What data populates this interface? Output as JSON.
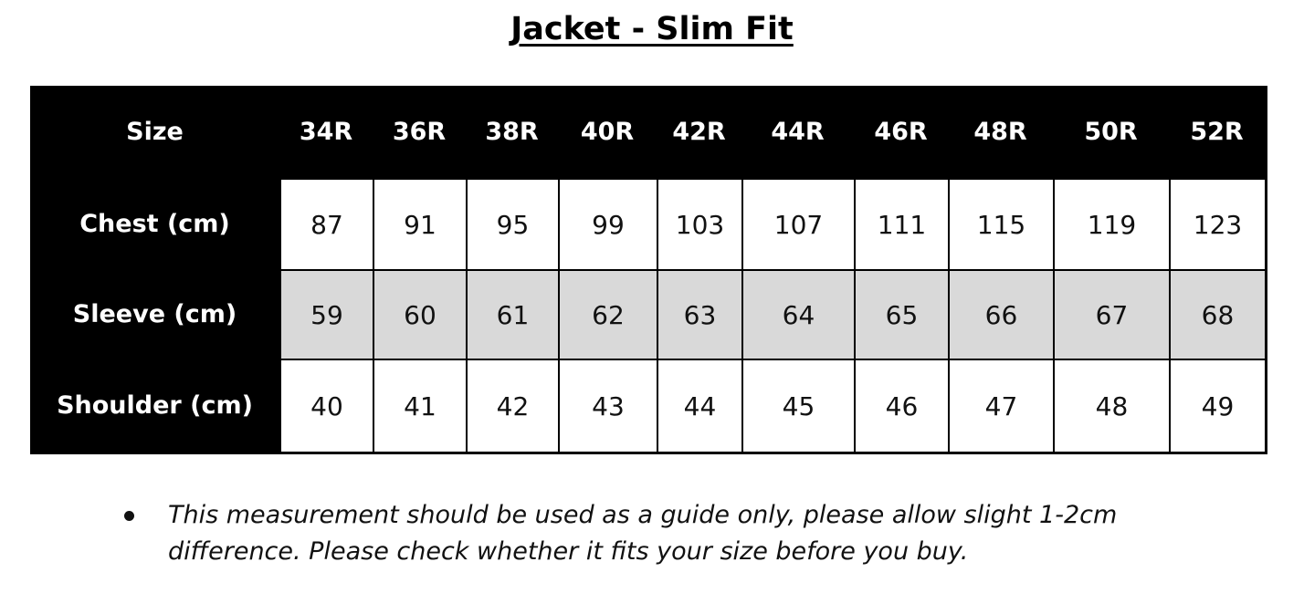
{
  "title": "Jacket - Slim Fit",
  "table": {
    "header_label": "Size",
    "sizes": [
      "34R",
      "36R",
      "38R",
      "40R",
      "42R",
      "44R",
      "46R",
      "48R",
      "50R",
      "52R"
    ],
    "rows": [
      {
        "label": "Chest (cm)",
        "values": [
          "87",
          "91",
          "95",
          "99",
          "103",
          "107",
          "111",
          "115",
          "119",
          "123"
        ],
        "shaded": false
      },
      {
        "label": "Sleeve (cm)",
        "values": [
          "59",
          "60",
          "61",
          "62",
          "63",
          "64",
          "65",
          "66",
          "67",
          "68"
        ],
        "shaded": true
      },
      {
        "label": "Shoulder (cm)",
        "values": [
          "40",
          "41",
          "42",
          "43",
          "44",
          "45",
          "46",
          "47",
          "48",
          "49"
        ],
        "shaded": false
      }
    ]
  },
  "colors": {
    "header_bg": "#000000",
    "shaded_row": "#d9d9d9"
  },
  "note": "This measurement should be used as a guide only, please allow slight 1-2cm difference. Please check whether it fits your size before you buy."
}
